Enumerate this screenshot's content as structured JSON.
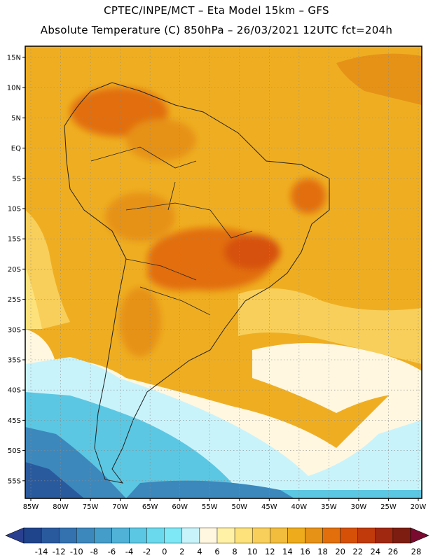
{
  "header": {
    "line1": "CPTEC/INPE/MCT –  Eta Model 15km – GFS",
    "line2": "Absolute Temperature (C) 850hPa – 26/03/2021 12UTC fct=204h"
  },
  "map": {
    "lat_labels": [
      "15N",
      "10N",
      "5N",
      "EQ",
      "5S",
      "10S",
      "15S",
      "20S",
      "25S",
      "30S",
      "35S",
      "40S",
      "45S",
      "50S",
      "55S"
    ],
    "lon_labels": [
      "85W",
      "80W",
      "75W",
      "70W",
      "65W",
      "60W",
      "55W",
      "50W",
      "45W",
      "40W",
      "35W",
      "30W",
      "25W",
      "20W"
    ],
    "colorbar": {
      "labels": [
        "-14",
        "-12",
        "-10",
        "-8",
        "-6",
        "-4",
        "-2",
        "0",
        "2",
        "4",
        "6",
        "8",
        "10",
        "12",
        "14",
        "16",
        "18",
        "20",
        "22",
        "24",
        "26",
        "28"
      ],
      "colors": [
        "#20448c",
        "#2a5a9e",
        "#3372af",
        "#3c88bd",
        "#449dc9",
        "#4fb2d6",
        "#5cc7e2",
        "#6ad9ee",
        "#7ee8f6",
        "#c9f3fb",
        "#fff7e0",
        "#fff1a6",
        "#fde27b",
        "#f8cf5a",
        "#f2bd3c",
        "#eeac1c",
        "#e69217",
        "#e26e0c",
        "#d65107",
        "#c03a0b",
        "#a02811",
        "#7d1d12"
      ],
      "low_arrow": "#2a3f90",
      "high_arrow": "#7a0a30"
    }
  }
}
